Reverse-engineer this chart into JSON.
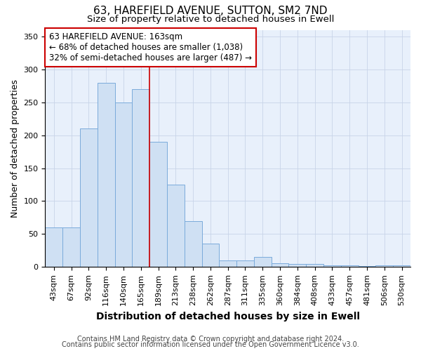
{
  "title": "63, HAREFIELD AVENUE, SUTTON, SM2 7ND",
  "subtitle": "Size of property relative to detached houses in Ewell",
  "xlabel": "Distribution of detached houses by size in Ewell",
  "ylabel": "Number of detached properties",
  "categories": [
    "43sqm",
    "67sqm",
    "92sqm",
    "116sqm",
    "140sqm",
    "165sqm",
    "189sqm",
    "213sqm",
    "238sqm",
    "262sqm",
    "287sqm",
    "311sqm",
    "335sqm",
    "360sqm",
    "384sqm",
    "408sqm",
    "433sqm",
    "457sqm",
    "481sqm",
    "506sqm",
    "530sqm"
  ],
  "values": [
    60,
    60,
    210,
    280,
    250,
    270,
    190,
    125,
    70,
    35,
    10,
    10,
    15,
    6,
    5,
    5,
    2,
    3,
    1,
    3,
    3
  ],
  "bar_color": "#cfe0f3",
  "bar_edge_color": "#7aabdb",
  "bar_width": 1.0,
  "vline_x_index": 6,
  "vline_color": "#cc0000",
  "annotation_text": "63 HAREFIELD AVENUE: 163sqm\n← 68% of detached houses are smaller (1,038)\n32% of semi-detached houses are larger (487) →",
  "annotation_box_color": "#ffffff",
  "annotation_box_edge": "#cc0000",
  "ylim": [
    0,
    360
  ],
  "yticks": [
    0,
    50,
    100,
    150,
    200,
    250,
    300,
    350
  ],
  "footnote1": "Contains HM Land Registry data © Crown copyright and database right 2024.",
  "footnote2": "Contains public sector information licensed under the Open Government Licence v3.0.",
  "title_fontsize": 11,
  "subtitle_fontsize": 9.5,
  "xlabel_fontsize": 10,
  "ylabel_fontsize": 9,
  "tick_fontsize": 8,
  "footnote_fontsize": 7,
  "annotation_fontsize": 8.5,
  "bg_color": "#ffffff",
  "plot_bg_color": "#e8f0fb",
  "grid_color": "#c8d4e8"
}
